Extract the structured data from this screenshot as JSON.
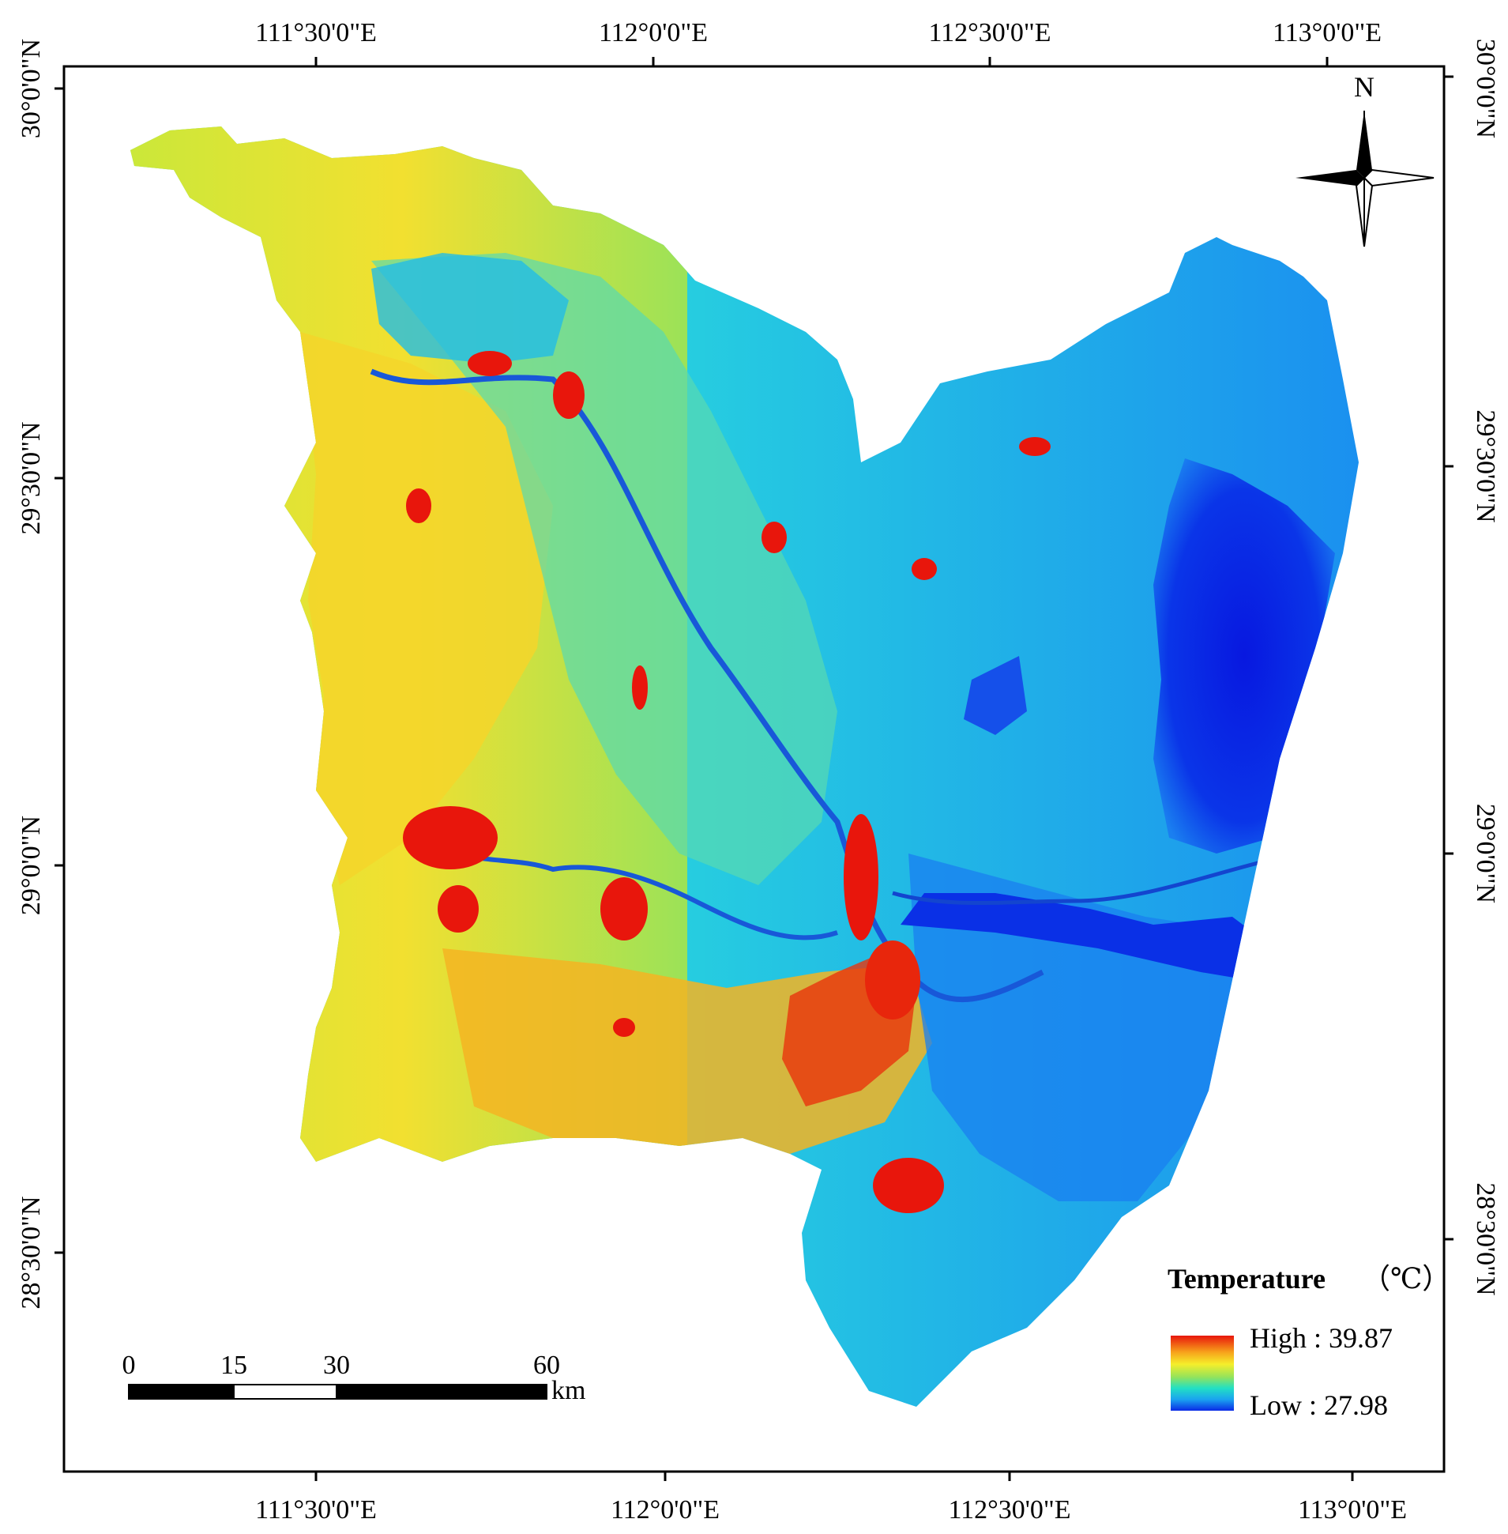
{
  "map": {
    "top_longitudes": [
      "111°30'0\"E",
      "112°0'0\"E",
      "112°30'0\"E",
      "113°0'0\"E"
    ],
    "bottom_longitudes": [
      "111°30'0\"E",
      "112°0'0\"E",
      "112°30'0\"E",
      "113°0'0\"E"
    ],
    "left_latitudes": [
      "30°0'0\"N",
      "29°30'0\"N",
      "29°0'0\"N",
      "28°30'0\"N"
    ],
    "right_latitudes": [
      "30°0'0\"N",
      "29°30'0\"N",
      "29°0'0\"N",
      "28°30'0\"N"
    ],
    "north_label": "N",
    "north_arrow_icon": "compass-rose-icon"
  },
  "legend": {
    "title": "Temperature",
    "unit": "（℃）",
    "high_label": "High : 39.87",
    "low_label": "Low : 27.98",
    "colors": [
      "#e8160c",
      "#f7a21b",
      "#f5ee2b",
      "#95e35a",
      "#22e0c4",
      "#1aa3f0",
      "#0a2ae6"
    ]
  },
  "scale_bar": {
    "ticks": [
      "0",
      "15",
      "30",
      "60"
    ],
    "unit": "km"
  },
  "palette": {
    "frame": "#000000",
    "hot": "#e8160c",
    "warm": "#f5ee2b",
    "mild": "#8fe060",
    "cool": "#22d6e0",
    "cold": "#1a7ff0",
    "water": "#0a2ae6"
  }
}
